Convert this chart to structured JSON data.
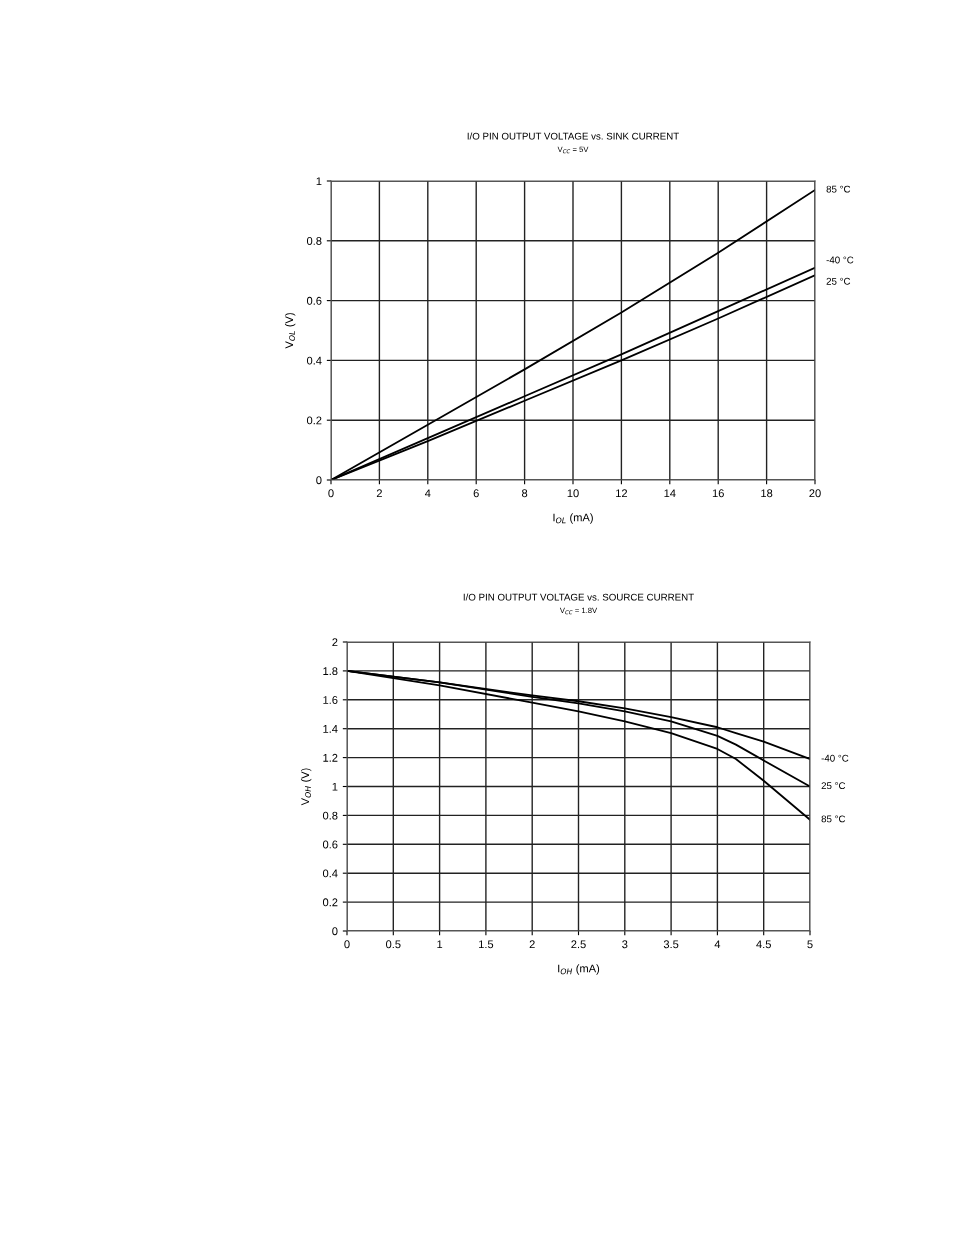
{
  "chart_data": [
    {
      "type": "line",
      "title": "I/O PIN OUTPUT VOLTAGE vs. SINK CURRENT",
      "subtitle": "V$_{CC}$ = 5V",
      "xlabel": "I$_{OL}$ (mA)",
      "ylabel": "V$_{OL}$ (V)",
      "x": [
        0,
        4,
        8,
        12,
        16,
        20
      ],
      "series": [
        {
          "name": "85 °C",
          "color": "#000000",
          "values": [
            0,
            0.185,
            0.37,
            0.56,
            0.76,
            0.97
          ]
        },
        {
          "name": "-40 °C",
          "color": "#000000",
          "values": [
            0,
            0.14,
            0.28,
            0.42,
            0.565,
            0.71
          ]
        },
        {
          "name": "25 °C",
          "color": "#000000",
          "values": [
            0,
            0.13,
            0.265,
            0.4,
            0.54,
            0.685
          ]
        }
      ],
      "xlim": [
        0,
        20
      ],
      "xticks": [
        0,
        2,
        4,
        6,
        8,
        10,
        12,
        14,
        16,
        18,
        20
      ],
      "ylim": [
        0,
        1
      ],
      "yticks": [
        0,
        0.2,
        0.4,
        0.6,
        0.8,
        1
      ],
      "grid": true,
      "legend": false,
      "marker": "none",
      "line_style": "solid"
    },
    {
      "type": "line",
      "title": "I/O PIN OUTPUT VOLTAGE vs. SOURCE CURRENT",
      "subtitle": "V$_{CC}$ = 1.8V",
      "xlabel": "I$_{OH}$ (mA)",
      "ylabel": "V$_{OH}$ (V)",
      "x": [
        0,
        1,
        2,
        2.5,
        3,
        3.5,
        4,
        4.2,
        4.5,
        5
      ],
      "series": [
        {
          "name": "-40 °C",
          "color": "#000000",
          "values": [
            1.8,
            1.72,
            1.63,
            1.59,
            1.54,
            1.48,
            1.41,
            1.37,
            1.31,
            1.19
          ]
        },
        {
          "name": "25 °C",
          "color": "#000000",
          "values": [
            1.8,
            1.72,
            1.62,
            1.575,
            1.52,
            1.45,
            1.35,
            1.29,
            1.18,
            1.0
          ]
        },
        {
          "name": "85 °C",
          "color": "#000000",
          "values": [
            1.8,
            1.7,
            1.58,
            1.52,
            1.45,
            1.37,
            1.26,
            1.19,
            1.04,
            0.77
          ]
        }
      ],
      "xlim": [
        0,
        5
      ],
      "xticks": [
        0,
        0.5,
        1,
        1.5,
        2,
        2.5,
        3,
        3.5,
        4,
        4.5,
        5
      ],
      "ylim": [
        0,
        2
      ],
      "yticks": [
        0,
        0.2,
        0.4,
        0.6,
        0.8,
        1,
        1.2,
        1.4,
        1.6,
        1.8,
        2
      ],
      "grid": true,
      "legend": false,
      "marker": "none",
      "line_style": "solid"
    }
  ]
}
